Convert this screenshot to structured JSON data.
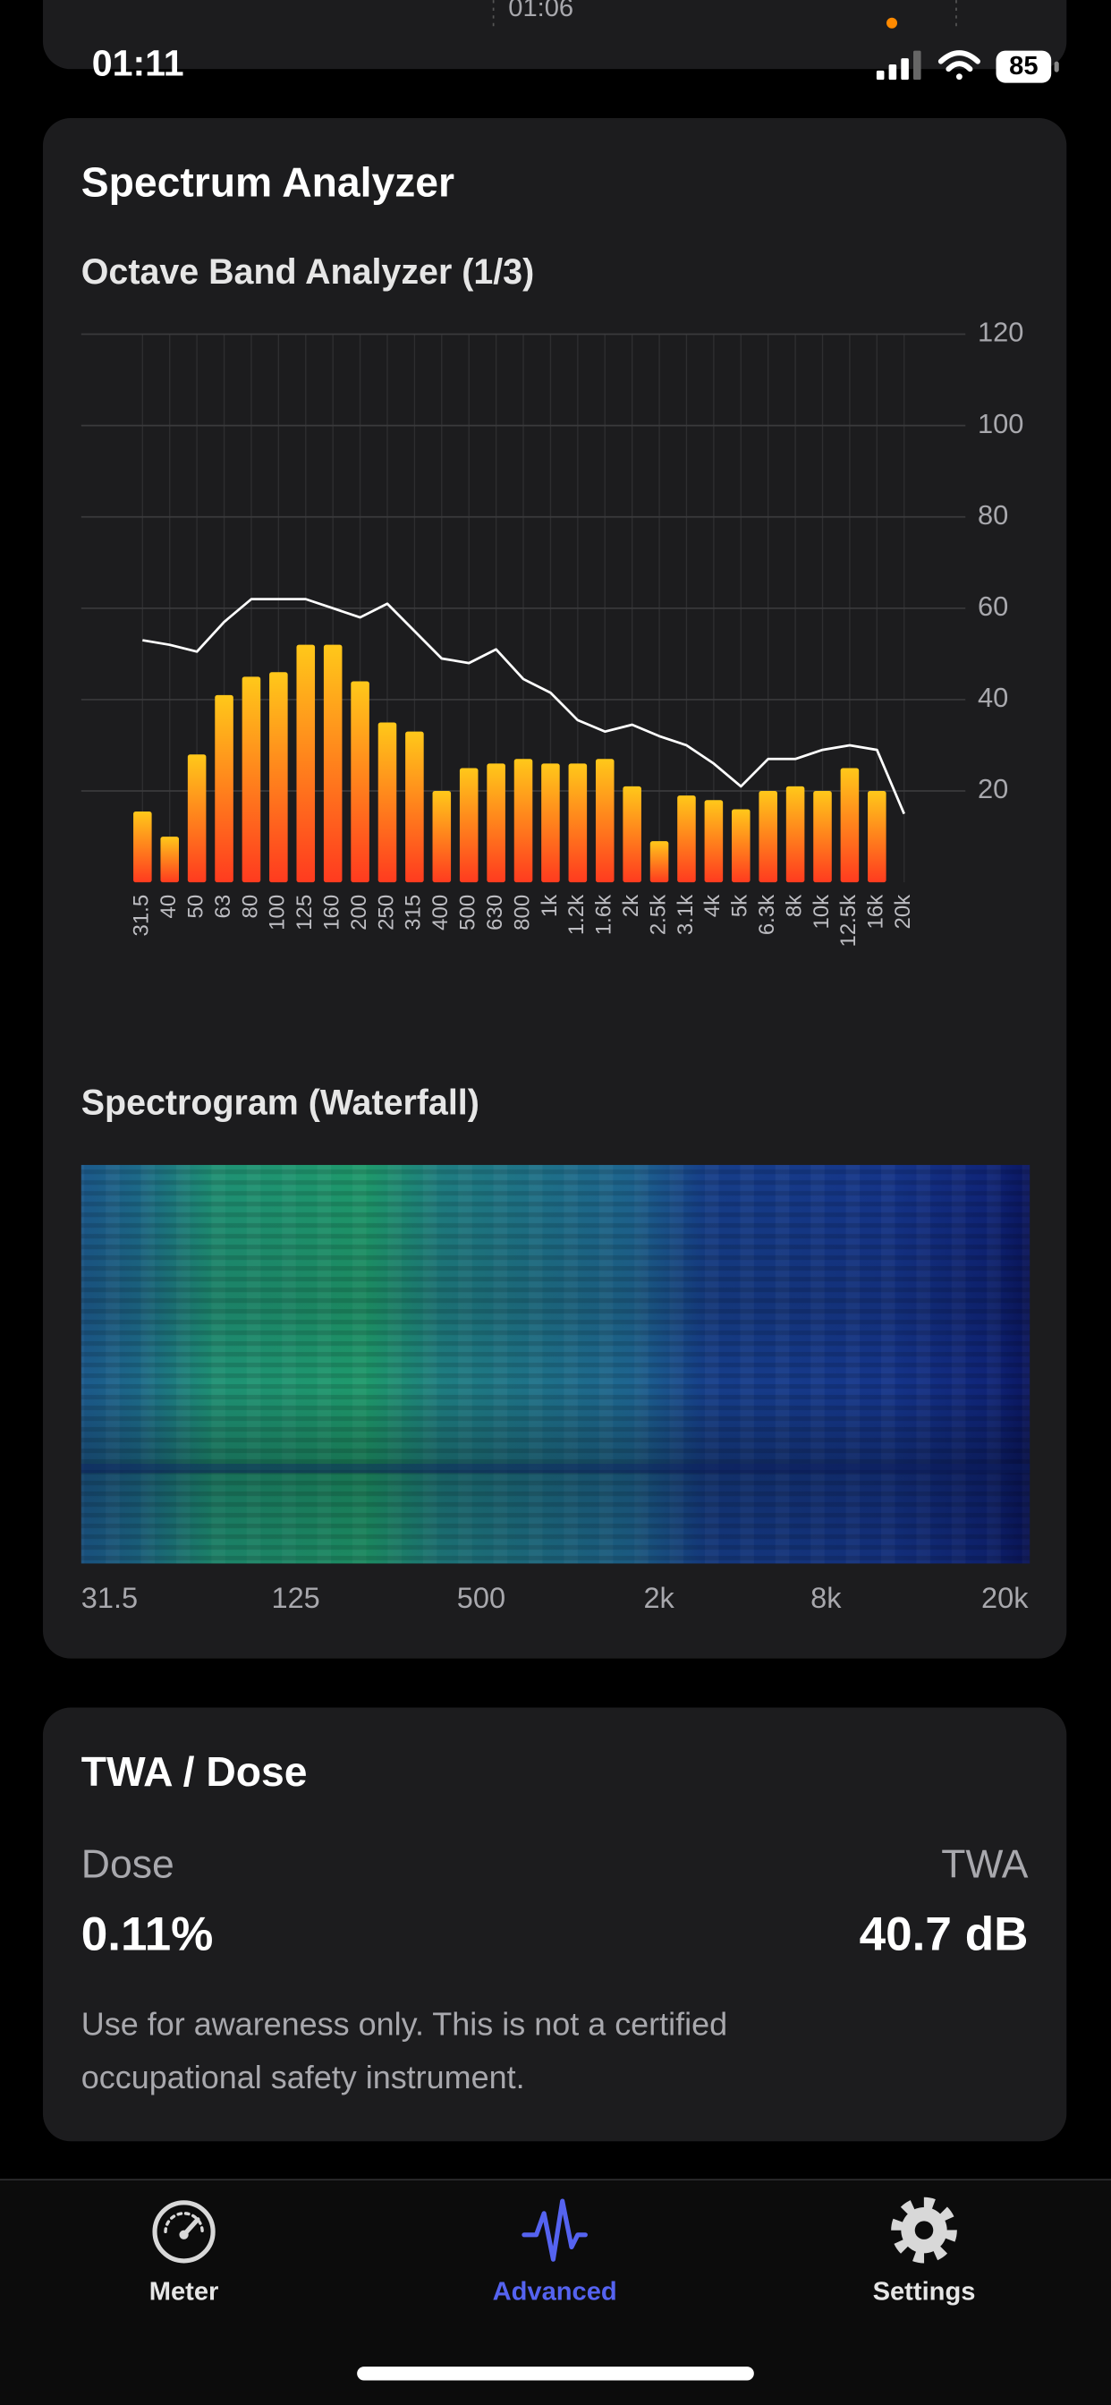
{
  "status_bar": {
    "time": "01:11",
    "battery": "85",
    "previous_time": "01:06"
  },
  "spectrum_card": {
    "title": "Spectrum Analyzer",
    "octave": {
      "type": "bar",
      "title": "Octave Band Analyzer (1/3)",
      "categories": [
        "31.5",
        "40",
        "50",
        "63",
        "80",
        "100",
        "125",
        "160",
        "200",
        "250",
        "315",
        "400",
        "500",
        "630",
        "800",
        "1k",
        "1.2k",
        "1.6k",
        "2k",
        "2.5k",
        "3.1k",
        "4k",
        "5k",
        "6.3k",
        "8k",
        "10k",
        "12.5k",
        "16k",
        "20k"
      ],
      "values": [
        15.5,
        10,
        28,
        41,
        45,
        46,
        52,
        52,
        44,
        35,
        33,
        20,
        25,
        26,
        27,
        26,
        26,
        27,
        21,
        9,
        19,
        18,
        16,
        20,
        21,
        20,
        25,
        20,
        null
      ],
      "line_values": [
        53,
        52,
        50.5,
        57,
        62,
        62,
        62,
        60,
        58,
        61,
        55,
        49,
        48,
        51,
        44.5,
        41.5,
        35.5,
        33,
        34.5,
        32,
        30,
        26,
        21,
        27,
        27,
        29,
        30,
        29,
        15
      ],
      "bar_colors": [
        "#ffc81a",
        "#ff3b1f"
      ],
      "line_color": "#ffffff",
      "ylim": [
        0,
        120
      ],
      "yticks": [
        20,
        40,
        60,
        80,
        100,
        120
      ],
      "grid": true
    },
    "spectrogram": {
      "title": "Spectrogram (Waterfall)",
      "x_labels": [
        "31.5",
        "125",
        "500",
        "2k",
        "8k",
        "20k"
      ]
    }
  },
  "twa_card": {
    "title": "TWA / Dose",
    "dose_label": "Dose",
    "dose_value": "0.11%",
    "twa_label": "TWA",
    "twa_value": "40.7 dB",
    "note_lines": [
      "Use for awareness only. This is not a certified",
      "occupational safety instrument."
    ]
  },
  "tab_bar": {
    "tabs": [
      {
        "label": "Meter"
      },
      {
        "label": "Advanced"
      },
      {
        "label": "Settings"
      }
    ]
  }
}
